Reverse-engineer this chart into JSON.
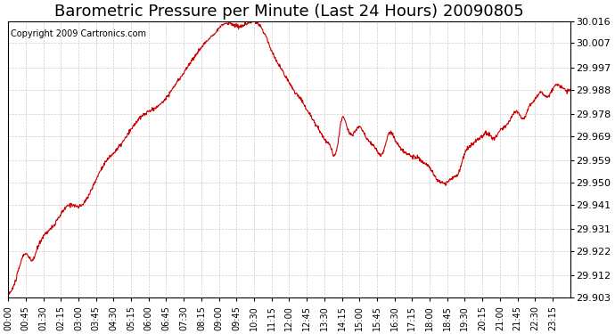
{
  "title": "Barometric Pressure per Minute (Last 24 Hours) 20090805",
  "copyright": "Copyright 2009 Cartronics.com",
  "line_color": "#cc0000",
  "background_color": "#ffffff",
  "grid_color": "#cccccc",
  "yticks": [
    29.903,
    29.912,
    29.922,
    29.931,
    29.941,
    29.95,
    29.959,
    29.969,
    29.978,
    29.988,
    29.997,
    30.007,
    30.016
  ],
  "ylim": [
    29.903,
    30.016
  ],
  "xtick_labels": [
    "00:00",
    "00:45",
    "01:30",
    "02:15",
    "03:00",
    "03:45",
    "04:30",
    "05:15",
    "06:00",
    "06:45",
    "07:30",
    "08:15",
    "09:00",
    "09:45",
    "10:30",
    "11:15",
    "12:00",
    "12:45",
    "13:30",
    "14:15",
    "15:00",
    "15:45",
    "16:30",
    "17:15",
    "18:00",
    "18:45",
    "19:30",
    "20:15",
    "21:00",
    "21:45",
    "22:30",
    "23:15"
  ],
  "title_fontsize": 13,
  "copyright_fontsize": 7,
  "ylabel_fontsize": 8,
  "xlabel_fontsize": 7,
  "control_points": [
    [
      0,
      29.905
    ],
    [
      15,
      29.908
    ],
    [
      30,
      29.916
    ],
    [
      45,
      29.921
    ],
    [
      60,
      29.918
    ],
    [
      75,
      29.923
    ],
    [
      90,
      29.928
    ],
    [
      120,
      29.933
    ],
    [
      135,
      29.937
    ],
    [
      150,
      29.94
    ],
    [
      165,
      29.941
    ],
    [
      180,
      29.94
    ],
    [
      210,
      29.946
    ],
    [
      225,
      29.951
    ],
    [
      240,
      29.956
    ],
    [
      270,
      29.962
    ],
    [
      300,
      29.968
    ],
    [
      330,
      29.975
    ],
    [
      360,
      29.979
    ],
    [
      390,
      29.982
    ],
    [
      420,
      29.988
    ],
    [
      450,
      29.995
    ],
    [
      480,
      30.002
    ],
    [
      510,
      30.008
    ],
    [
      540,
      30.013
    ],
    [
      555,
      30.015
    ],
    [
      570,
      30.015
    ],
    [
      585,
      30.014
    ],
    [
      600,
      30.014
    ],
    [
      615,
      30.015
    ],
    [
      630,
      30.016
    ],
    [
      645,
      30.014
    ],
    [
      660,
      30.01
    ],
    [
      675,
      30.004
    ],
    [
      690,
      29.999
    ],
    [
      705,
      29.995
    ],
    [
      720,
      29.991
    ],
    [
      735,
      29.987
    ],
    [
      750,
      29.984
    ],
    [
      765,
      29.98
    ],
    [
      780,
      29.976
    ],
    [
      795,
      29.972
    ],
    [
      810,
      29.968
    ],
    [
      825,
      29.965
    ],
    [
      840,
      29.962
    ],
    [
      855,
      29.976
    ],
    [
      870,
      29.972
    ],
    [
      885,
      29.97
    ],
    [
      900,
      29.973
    ],
    [
      915,
      29.969
    ],
    [
      930,
      29.966
    ],
    [
      945,
      29.963
    ],
    [
      960,
      29.962
    ],
    [
      975,
      29.97
    ],
    [
      990,
      29.968
    ],
    [
      1005,
      29.964
    ],
    [
      1020,
      29.962
    ],
    [
      1035,
      29.961
    ],
    [
      1050,
      29.96
    ],
    [
      1065,
      29.958
    ],
    [
      1080,
      29.956
    ],
    [
      1095,
      29.952
    ],
    [
      1110,
      29.95
    ],
    [
      1125,
      29.95
    ],
    [
      1140,
      29.952
    ],
    [
      1155,
      29.954
    ],
    [
      1170,
      29.962
    ],
    [
      1185,
      29.965
    ],
    [
      1200,
      29.967
    ],
    [
      1215,
      29.969
    ],
    [
      1230,
      29.97
    ],
    [
      1245,
      29.968
    ],
    [
      1260,
      29.971
    ],
    [
      1275,
      29.973
    ],
    [
      1290,
      29.977
    ],
    [
      1305,
      29.979
    ],
    [
      1320,
      29.976
    ],
    [
      1335,
      29.981
    ],
    [
      1350,
      29.984
    ],
    [
      1365,
      29.987
    ],
    [
      1380,
      29.985
    ],
    [
      1395,
      29.988
    ],
    [
      1410,
      29.99
    ],
    [
      1425,
      29.988
    ],
    [
      1440,
      29.988
    ]
  ]
}
